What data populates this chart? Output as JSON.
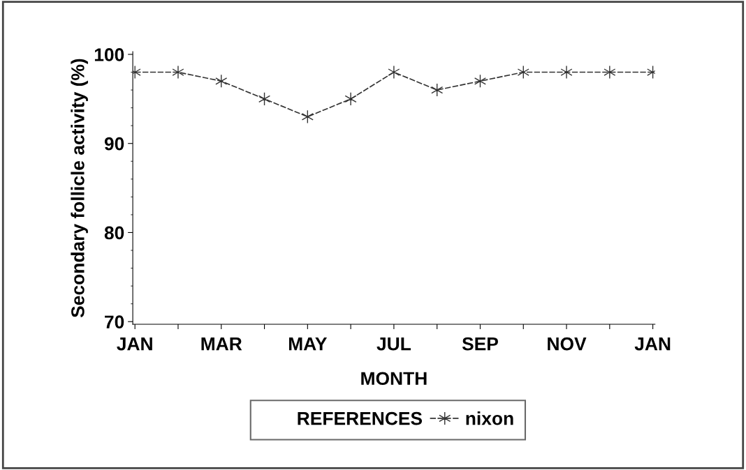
{
  "chart_data": {
    "type": "line",
    "xlabel": "MONTH",
    "ylabel": "Secondary follicle activity (%)",
    "legend_title": "REFERENCES",
    "categories": [
      "JAN",
      null,
      "MAR",
      null,
      "MAY",
      null,
      "JUL",
      null,
      "SEP",
      null,
      "NOV",
      null,
      "JAN"
    ],
    "series": [
      {
        "name": "nixon",
        "color": "#333333",
        "values": [
          98,
          98,
          97,
          95,
          93,
          95,
          98,
          96,
          97,
          98,
          98,
          98,
          98
        ]
      }
    ],
    "ylim": [
      69.7,
      100.3
    ],
    "yticks": [
      70,
      80,
      90,
      100
    ],
    "grid": false,
    "legend": "bottom",
    "marker": "cross",
    "line_style": "dashed"
  }
}
